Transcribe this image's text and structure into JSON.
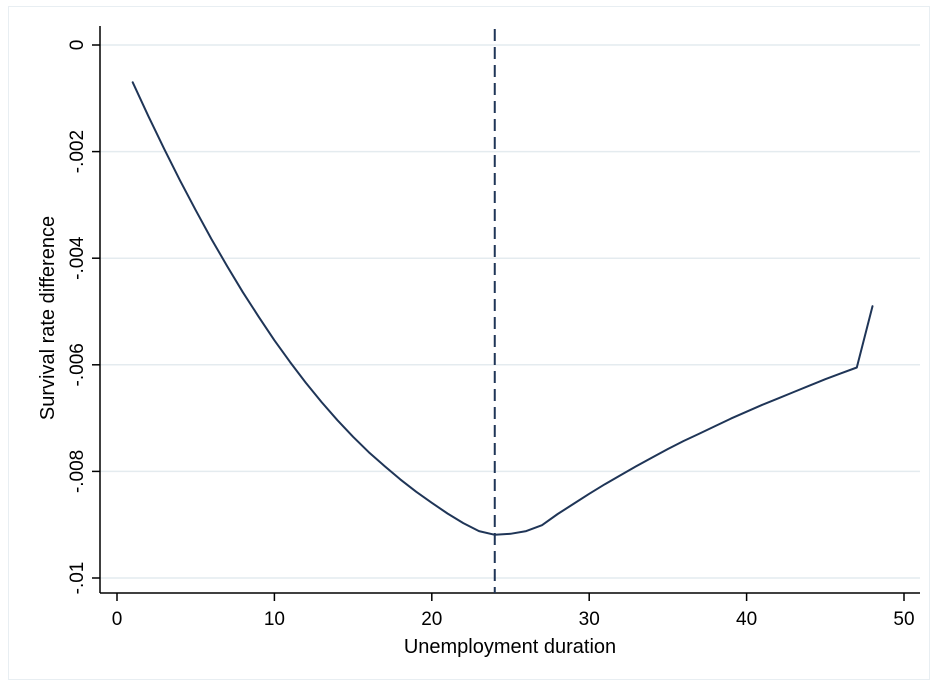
{
  "chart_data": {
    "type": "line",
    "title": "",
    "xlabel": "Unemployment duration",
    "ylabel": "Survival rate difference",
    "xlim": [
      -1,
      51
    ],
    "ylim": [
      -0.0103,
      0.0003
    ],
    "xticks": [
      0,
      10,
      20,
      30,
      40,
      50
    ],
    "xtick_labels": [
      "0",
      "10",
      "20",
      "30",
      "40",
      "50"
    ],
    "yticks": [
      0,
      -0.002,
      -0.004,
      -0.006,
      -0.008,
      -0.01
    ],
    "ytick_labels": [
      "0",
      "-.002",
      "-.004",
      "-.006",
      "-.008",
      "-.01"
    ],
    "grid": "horizontal",
    "reference_line": {
      "axis": "x",
      "value": 24,
      "style": "dashed"
    },
    "series": [
      {
        "color": "#1f3557",
        "x": [
          1,
          2,
          3,
          4,
          5,
          6,
          7,
          8,
          9,
          10,
          11,
          12,
          13,
          14,
          15,
          16,
          17,
          18,
          19,
          20,
          21,
          22,
          23,
          24,
          25,
          26,
          27,
          28,
          29,
          30,
          31,
          32,
          33,
          34,
          35,
          36,
          37,
          38,
          39,
          40,
          41,
          42,
          43,
          44,
          45,
          46,
          47,
          48
        ],
        "y": [
          -0.0007,
          -0.00134,
          -0.00195,
          -0.00254,
          -0.0031,
          -0.00364,
          -0.00415,
          -0.00464,
          -0.0051,
          -0.00554,
          -0.00595,
          -0.00634,
          -0.0067,
          -0.00704,
          -0.00735,
          -0.00764,
          -0.0079,
          -0.00815,
          -0.00838,
          -0.00859,
          -0.00879,
          -0.00897,
          -0.00912,
          -0.00919,
          -0.00917,
          -0.00912,
          -0.00901,
          -0.0088,
          -0.00861,
          -0.00842,
          -0.00824,
          -0.00807,
          -0.0079,
          -0.00774,
          -0.00758,
          -0.00743,
          -0.00729,
          -0.00715,
          -0.00701,
          -0.00688,
          -0.00675,
          -0.00663,
          -0.00651,
          -0.00639,
          -0.00627,
          -0.00616,
          -0.00605,
          -0.0049
        ]
      }
    ]
  }
}
